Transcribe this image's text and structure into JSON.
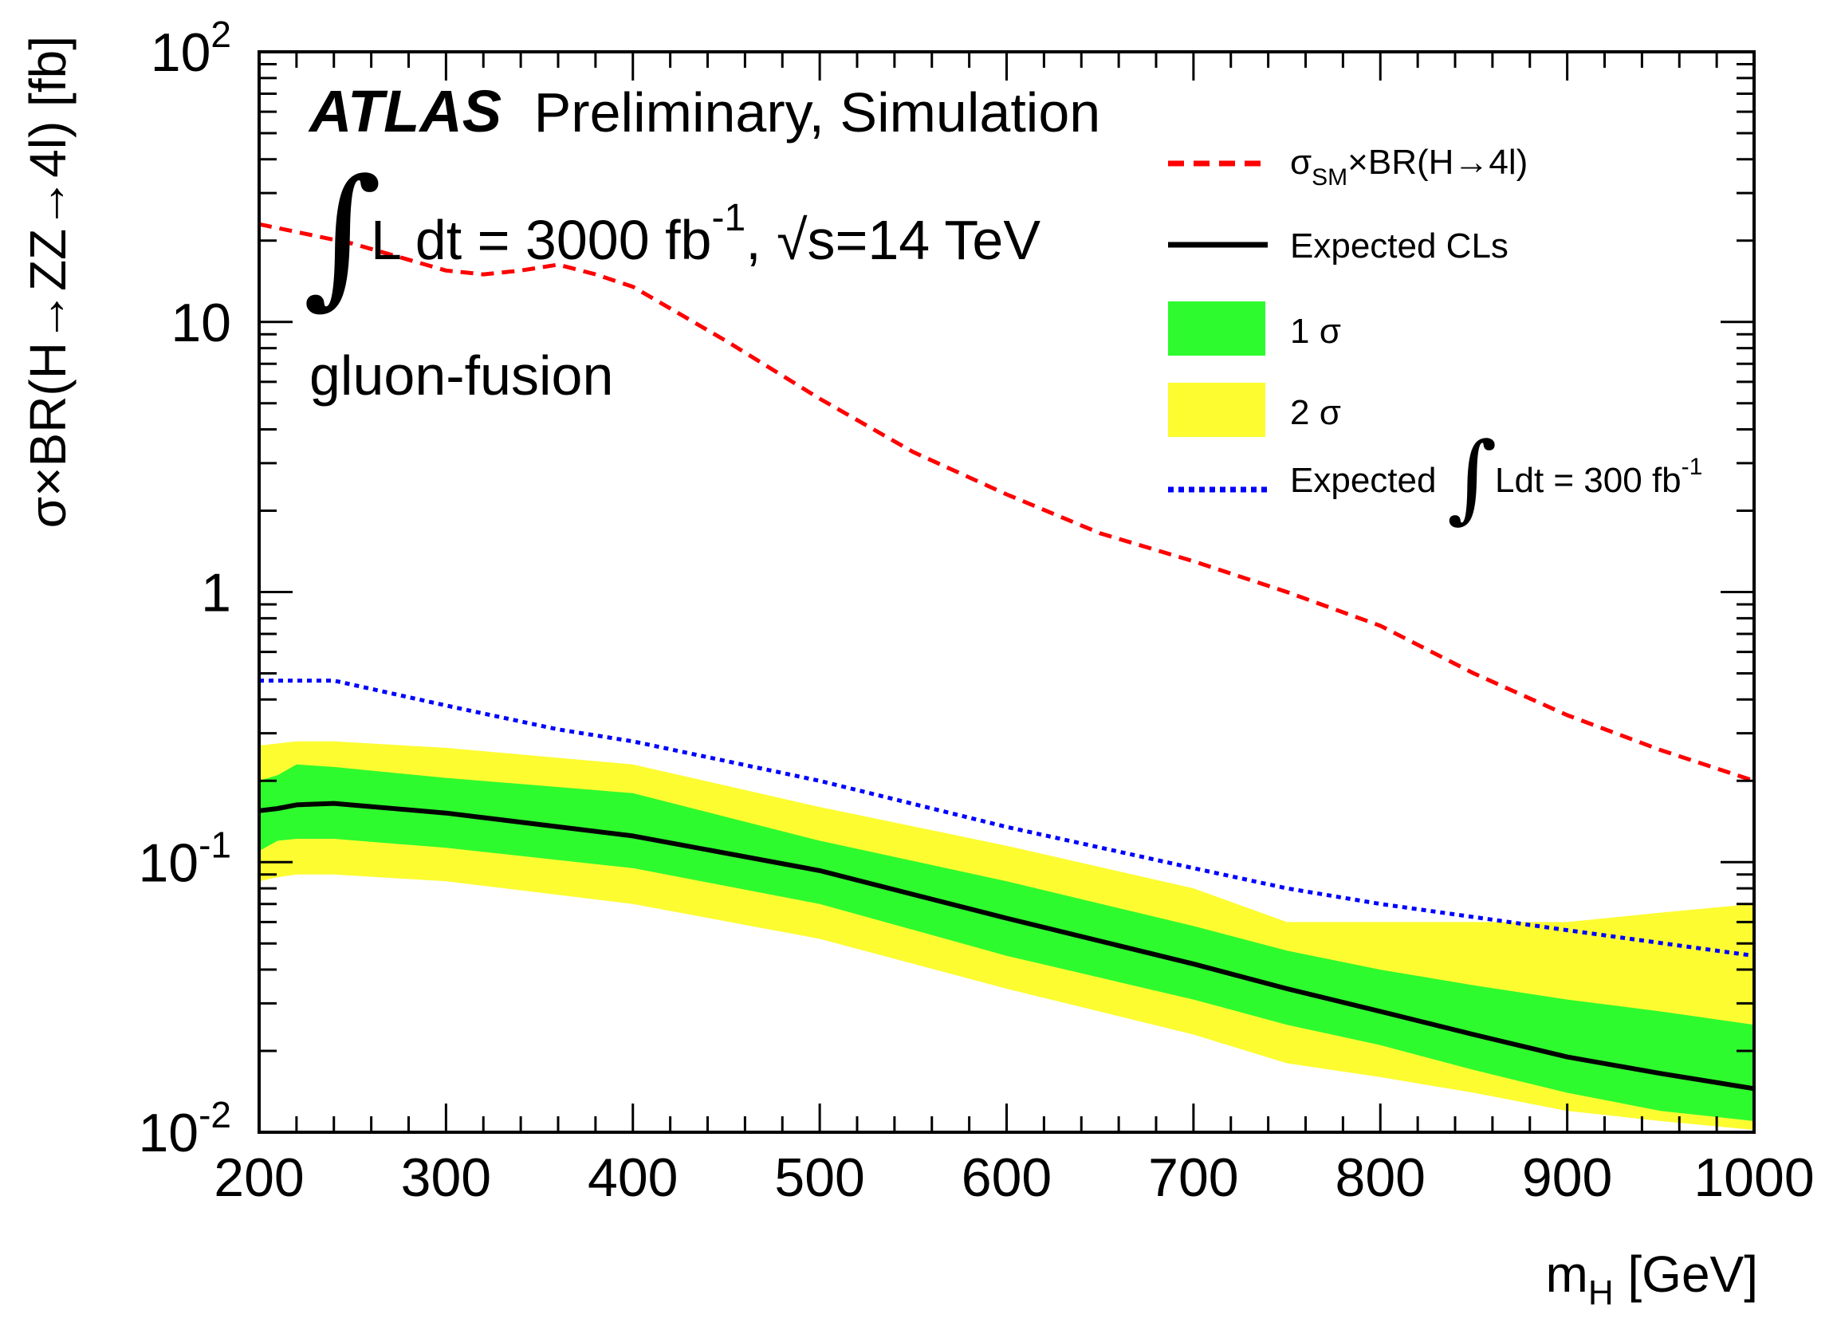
{
  "chart_data": {
    "type": "line",
    "title": "",
    "xlabel": "m_H [GeV]",
    "xlabel_main": "m",
    "xlabel_sub": "H",
    "xlabel_unit": " [GeV]",
    "ylabel": "σ×BR(H→ZZ→4l) [fb]",
    "xlim": [
      200,
      1000
    ],
    "ylim": [
      0.01,
      100
    ],
    "yscale": "log",
    "x_ticks": [
      200,
      300,
      400,
      500,
      600,
      700,
      800,
      900,
      1000
    ],
    "y_ticks": [
      {
        "value": 0.01,
        "base": "10",
        "exp": "-2"
      },
      {
        "value": 0.1,
        "base": "10",
        "exp": "-1"
      },
      {
        "value": 1,
        "base": "1",
        "exp": ""
      },
      {
        "value": 10,
        "base": "10",
        "exp": ""
      },
      {
        "value": 100,
        "base": "10",
        "exp": "2"
      }
    ],
    "annotations": {
      "experiment": "ATLAS",
      "status": "Preliminary, Simulation",
      "integral_symbol": "∫",
      "lumi_text": "L dt = 3000 fb",
      "lumi_exp": "-1",
      "energy_text": ", √s=14 TeV",
      "process": "gluon-fusion"
    },
    "legend": [
      {
        "key": "sm",
        "label_main": "σ",
        "label_sub": "SM",
        "label_rest": "×BR(H→4l)",
        "color": "#ff0000",
        "style": "dashed"
      },
      {
        "key": "expected",
        "label": "Expected CLs",
        "color": "#000000",
        "style": "solid"
      },
      {
        "key": "one_sigma",
        "label": "1 σ",
        "color": "#2efb2e",
        "style": "fill"
      },
      {
        "key": "two_sigma",
        "label": "2 σ",
        "color": "#fcfc31",
        "style": "fill"
      },
      {
        "key": "exp300",
        "label_main": "Expected",
        "label_int": "∫",
        "label_rest": "Ldt = 300 fb",
        "label_exp": "-1",
        "color": "#0000ff",
        "style": "dotted"
      }
    ],
    "x": [
      200,
      210,
      220,
      240,
      300,
      400,
      500,
      600,
      700,
      750,
      800,
      850,
      900,
      950,
      1000
    ],
    "series": [
      {
        "name": "σSM×BR(H→4l)",
        "key": "sm",
        "color": "#ff0000",
        "x": [
          200,
          250,
          300,
          320,
          340,
          360,
          380,
          400,
          450,
          500,
          550,
          600,
          650,
          700,
          750,
          800,
          850,
          900,
          950,
          1000
        ],
        "values": [
          23,
          19.5,
          15.5,
          15,
          15.5,
          16.3,
          15,
          13.5,
          8.5,
          5.2,
          3.3,
          2.3,
          1.65,
          1.3,
          1.0,
          0.75,
          0.5,
          0.35,
          0.26,
          0.2
        ]
      },
      {
        "name": "Expected CLs",
        "key": "expected",
        "color": "#000000",
        "values": [
          0.155,
          0.158,
          0.163,
          0.165,
          0.152,
          0.125,
          0.093,
          0.062,
          0.042,
          0.034,
          0.028,
          0.023,
          0.019,
          0.0165,
          0.0145
        ]
      },
      {
        "name": "1 σ upper",
        "key": "one_sigma_hi",
        "color": "#2efb2e",
        "values": [
          0.2,
          0.21,
          0.23,
          0.225,
          0.205,
          0.18,
          0.12,
          0.085,
          0.058,
          0.047,
          0.04,
          0.035,
          0.031,
          0.028,
          0.025
        ]
      },
      {
        "name": "1 σ lower",
        "key": "one_sigma_lo",
        "color": "#2efb2e",
        "values": [
          0.11,
          0.12,
          0.122,
          0.122,
          0.113,
          0.095,
          0.07,
          0.045,
          0.031,
          0.025,
          0.021,
          0.017,
          0.014,
          0.012,
          0.011
        ]
      },
      {
        "name": "2 σ upper",
        "key": "two_sigma_hi",
        "color": "#fcfc31",
        "values": [
          0.27,
          0.275,
          0.28,
          0.28,
          0.265,
          0.23,
          0.16,
          0.115,
          0.08,
          0.06,
          0.06,
          0.06,
          0.06,
          0.065,
          0.07
        ]
      },
      {
        "name": "2 σ lower",
        "key": "two_sigma_lo",
        "color": "#fcfc31",
        "values": [
          0.085,
          0.088,
          0.09,
          0.09,
          0.085,
          0.07,
          0.052,
          0.034,
          0.023,
          0.018,
          0.016,
          0.014,
          0.012,
          0.011,
          0.0102
        ]
      },
      {
        "name": "Expected ∫Ldt = 300 fb-1",
        "key": "exp300",
        "color": "#0000ff",
        "x": [
          200,
          240,
          300,
          360,
          400,
          500,
          600,
          700,
          750,
          800,
          900,
          1000
        ],
        "values": [
          0.47,
          0.47,
          0.38,
          0.31,
          0.28,
          0.2,
          0.135,
          0.095,
          0.08,
          0.07,
          0.056,
          0.045
        ]
      }
    ]
  }
}
